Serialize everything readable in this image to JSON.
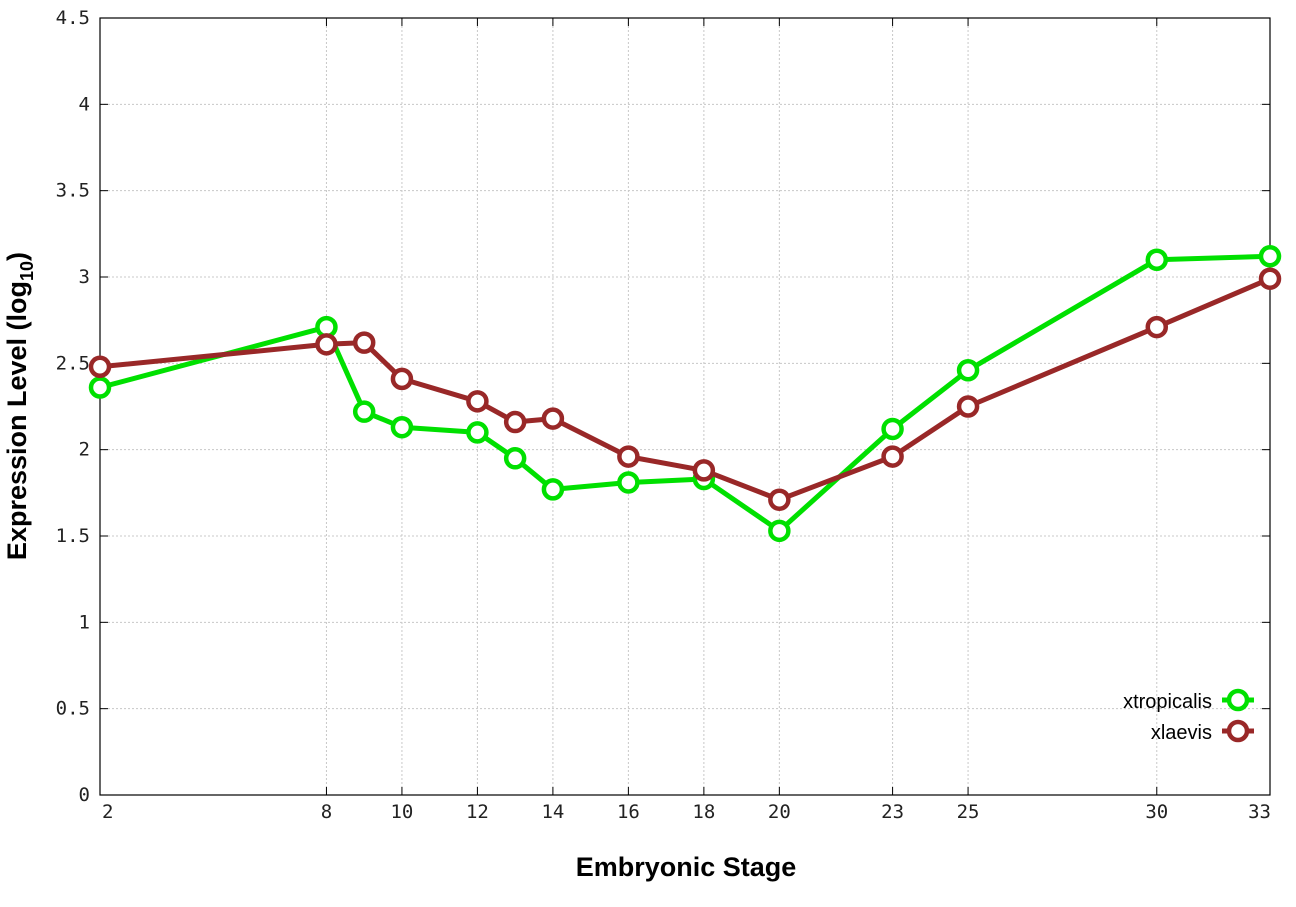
{
  "chart_data": {
    "type": "line",
    "xlabel": "Embryonic Stage",
    "ylabel_main": "Expression Level (log",
    "ylabel_sub": "10",
    "ylabel_close": ")",
    "xlim": [
      2,
      33
    ],
    "ylim": [
      0,
      4.5
    ],
    "x_ticks": [
      2,
      8,
      10,
      12,
      14,
      16,
      18,
      20,
      23,
      25,
      30,
      33
    ],
    "y_ticks": [
      0,
      0.5,
      1,
      1.5,
      2,
      2.5,
      3,
      3.5,
      4,
      4.5
    ],
    "y_tick_labels": [
      "0",
      "0.5",
      "1",
      "1.5",
      "2",
      "2.5",
      "3",
      "3.5",
      "4",
      "4.5"
    ],
    "grid": true,
    "legend_position": "bottom-right",
    "series": [
      {
        "name": "xtropicalis",
        "color": "#00e000",
        "marker": "open-circle",
        "x": [
          2,
          8,
          9,
          10,
          12,
          13,
          14,
          16,
          18,
          20,
          23,
          25,
          30,
          33
        ],
        "y": [
          2.36,
          2.71,
          2.22,
          2.13,
          2.1,
          1.95,
          1.77,
          1.81,
          1.83,
          1.53,
          2.12,
          2.46,
          3.1,
          3.12
        ]
      },
      {
        "name": "xlaevis",
        "color": "#992828",
        "marker": "open-circle",
        "x": [
          2,
          8,
          9,
          10,
          12,
          13,
          14,
          16,
          18,
          20,
          23,
          25,
          30,
          33
        ],
        "y": [
          2.48,
          2.61,
          2.62,
          2.41,
          2.28,
          2.16,
          2.18,
          1.96,
          1.88,
          1.71,
          1.96,
          2.25,
          2.71,
          2.99
        ]
      }
    ]
  }
}
